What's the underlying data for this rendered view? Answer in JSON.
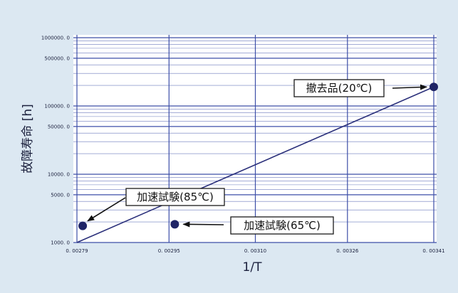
{
  "chart_data": {
    "type": "scatter",
    "title": "",
    "xlabel": "1/T",
    "ylabel": "故障寿命 [h]",
    "y_scale": "log",
    "xlim": [
      0.00279,
      0.00341
    ],
    "ylim": [
      1000,
      1000000
    ],
    "grid": true,
    "x_ticks": [
      {
        "value": 0.00279,
        "label": "0. 00279"
      },
      {
        "value": 0.00295,
        "label": "0. 00295"
      },
      {
        "value": 0.0031,
        "label": "0. 00310"
      },
      {
        "value": 0.00326,
        "label": "0. 00326"
      },
      {
        "value": 0.00341,
        "label": "0. 00341"
      }
    ],
    "y_ticks": [
      {
        "value": 1000000,
        "label": "1000000. 0"
      },
      {
        "value": 500000,
        "label": "500000. 0"
      },
      {
        "value": 100000,
        "label": "100000. 0"
      },
      {
        "value": 50000,
        "label": "50000. 0"
      },
      {
        "value": 10000,
        "label": "10000. 0"
      },
      {
        "value": 5000,
        "label": "5000. 0"
      },
      {
        "value": 1000,
        "label": "1000. 0"
      }
    ],
    "points": [
      {
        "label": "加速試験(85℃)",
        "x": 0.0028,
        "y": 1750
      },
      {
        "label": "加速試験(65℃)",
        "x": 0.00296,
        "y": 1850
      },
      {
        "label": "撤去品(20℃)",
        "x": 0.00341,
        "y": 190000
      }
    ],
    "fit_line": {
      "x": [
        0.00279,
        0.00341
      ],
      "y": [
        1000,
        190000
      ]
    },
    "colors": {
      "background": "#dce8f2",
      "plot_area": "#ffffff",
      "grid": "#3d4fa8",
      "line": "#2a2f7a",
      "marker": "#1f2466",
      "text": "#1a1f3c"
    }
  }
}
